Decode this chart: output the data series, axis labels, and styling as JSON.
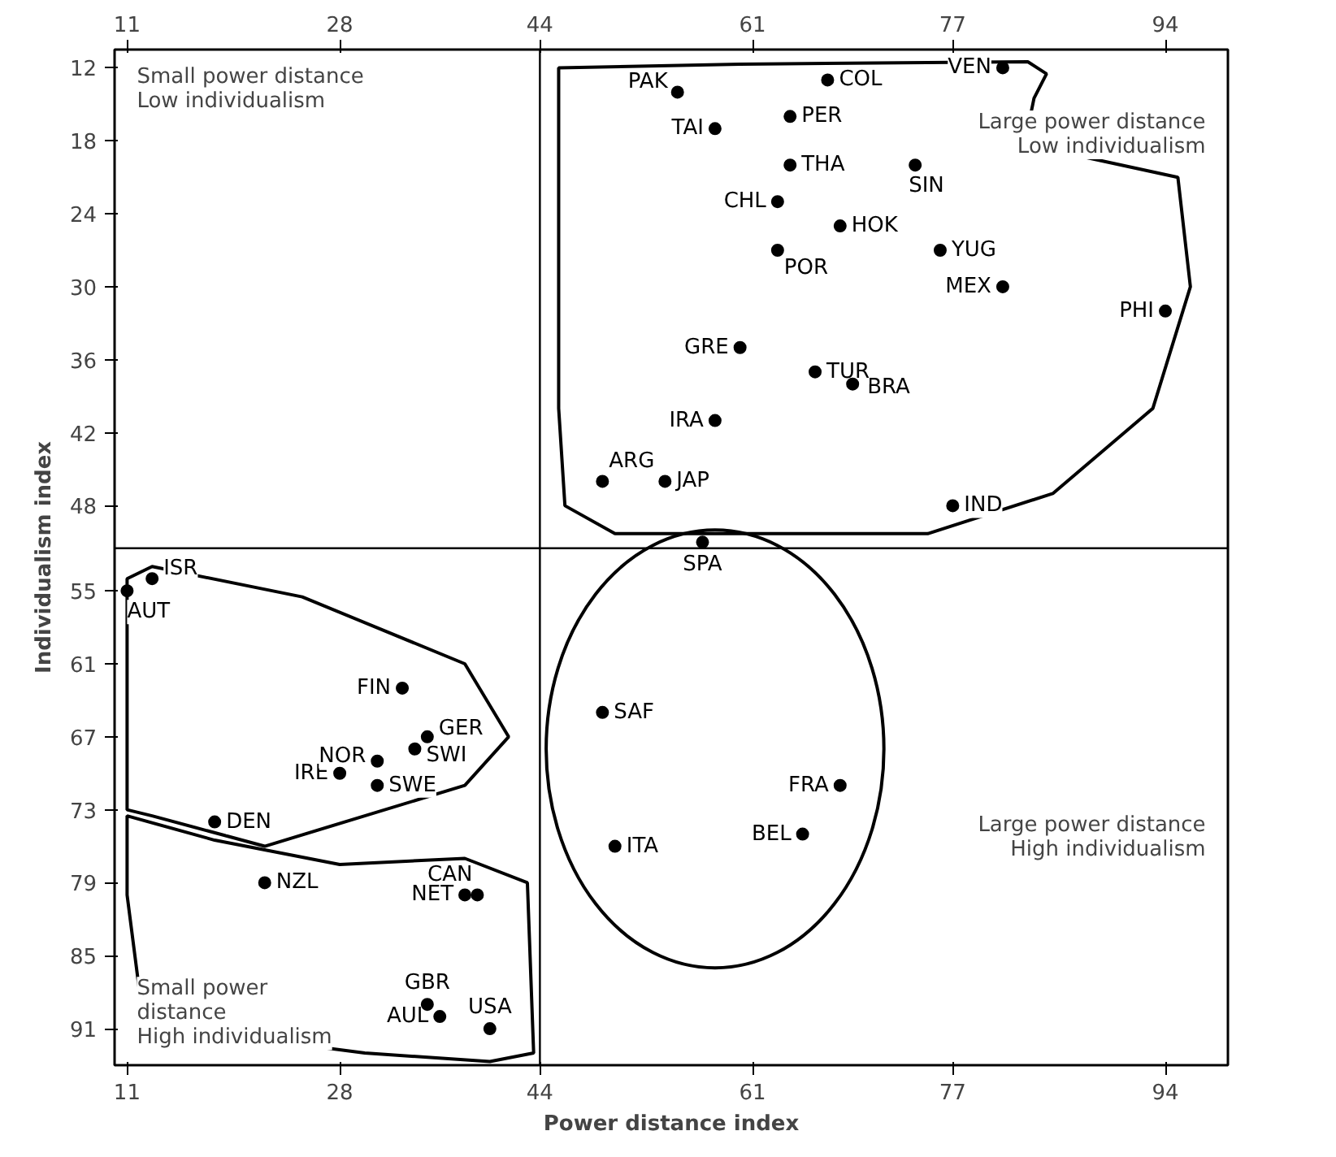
{
  "chart_data": {
    "type": "scatter",
    "xlabel": "Power distance index",
    "ylabel": "Individualism index",
    "xlim": [
      10,
      99
    ],
    "xticks": [
      11,
      28,
      44,
      61,
      77,
      94
    ],
    "x2lim": [
      10,
      99
    ],
    "x2ticks": [
      11,
      28,
      44,
      61,
      77,
      94
    ],
    "ylim": [
      94,
      10.5
    ],
    "yticks": [
      12,
      18,
      24,
      30,
      36,
      42,
      48,
      55,
      61,
      67,
      73,
      79,
      85,
      91
    ],
    "grid": false,
    "marker": "circle",
    "ref_lines": [
      {
        "axis": "x",
        "value": 44,
        "label": null
      },
      {
        "axis": "y",
        "value": 51.5,
        "label": null
      }
    ],
    "series": [
      {
        "color": "#000000",
        "x": [
          49,
          36,
          11,
          65,
          69,
          39,
          63,
          67,
          18,
          33,
          68,
          35,
          35,
          60,
          68,
          77,
          58,
          28,
          13,
          50,
          54,
          81,
          38,
          31,
          22,
          55,
          64,
          94,
          63,
          49,
          74,
          57,
          31,
          34,
          58,
          64,
          66,
          40,
          81,
          76
        ],
        "values": [
          46,
          90,
          55,
          75,
          38,
          80,
          23,
          13,
          74,
          63,
          71,
          89,
          67,
          35,
          25,
          48,
          41,
          70,
          54,
          76,
          46,
          30,
          80,
          69,
          79,
          14,
          16,
          32,
          27,
          65,
          20,
          51,
          71,
          68,
          17,
          20,
          37,
          91,
          12,
          27
        ]
      }
    ],
    "annotations": [
      {
        "text": "ARG",
        "x": 49,
        "y": 46
      },
      {
        "text": "AUL",
        "x": 36,
        "y": 90
      },
      {
        "text": "AUT",
        "x": 11,
        "y": 55
      },
      {
        "text": "BEL",
        "x": 65,
        "y": 75
      },
      {
        "text": "BRA",
        "x": 69,
        "y": 38
      },
      {
        "text": "CAN",
        "x": 39,
        "y": 80
      },
      {
        "text": "CHL",
        "x": 63,
        "y": 23
      },
      {
        "text": "COL",
        "x": 67,
        "y": 13
      },
      {
        "text": "DEN",
        "x": 18,
        "y": 74
      },
      {
        "text": "FIN",
        "x": 33,
        "y": 63
      },
      {
        "text": "FRA",
        "x": 68,
        "y": 71
      },
      {
        "text": "GBR",
        "x": 35,
        "y": 89
      },
      {
        "text": "GER",
        "x": 35,
        "y": 67
      },
      {
        "text": "GRE",
        "x": 60,
        "y": 35
      },
      {
        "text": "HOK",
        "x": 68,
        "y": 25
      },
      {
        "text": "IND",
        "x": 77,
        "y": 48
      },
      {
        "text": "IRA",
        "x": 58,
        "y": 41
      },
      {
        "text": "IRE",
        "x": 28,
        "y": 70
      },
      {
        "text": "ISR",
        "x": 13,
        "y": 54
      },
      {
        "text": "ITA",
        "x": 50,
        "y": 76
      },
      {
        "text": "JAP",
        "x": 54,
        "y": 46
      },
      {
        "text": "MEX",
        "x": 81,
        "y": 30
      },
      {
        "text": "NET",
        "x": 38,
        "y": 80
      },
      {
        "text": "NOR",
        "x": 31,
        "y": 69
      },
      {
        "text": "NZL",
        "x": 22,
        "y": 79
      },
      {
        "text": "PAK",
        "x": 55,
        "y": 14
      },
      {
        "text": "PER",
        "x": 64,
        "y": 16
      },
      {
        "text": "PHI",
        "x": 94,
        "y": 32
      },
      {
        "text": "POR",
        "x": 63,
        "y": 27
      },
      {
        "text": "SAF",
        "x": 49,
        "y": 65
      },
      {
        "text": "SIN",
        "x": 74,
        "y": 20
      },
      {
        "text": "SPA",
        "x": 57,
        "y": 51
      },
      {
        "text": "SWE",
        "x": 31,
        "y": 71
      },
      {
        "text": "SWI",
        "x": 34,
        "y": 68
      },
      {
        "text": "TAI",
        "x": 58,
        "y": 17
      },
      {
        "text": "THA",
        "x": 64,
        "y": 20
      },
      {
        "text": "TUR",
        "x": 66,
        "y": 37
      },
      {
        "text": "USA",
        "x": 40,
        "y": 91
      },
      {
        "text": "VEN",
        "x": 81,
        "y": 12
      },
      {
        "text": "YUG",
        "x": 76,
        "y": 27
      },
      "Small power distance\nLow individualism",
      "Large power distance\nLow individualism",
      "Large power distance\nHigh individualism",
      "Small power\ndistance\nHigh individualism"
    ]
  }
}
